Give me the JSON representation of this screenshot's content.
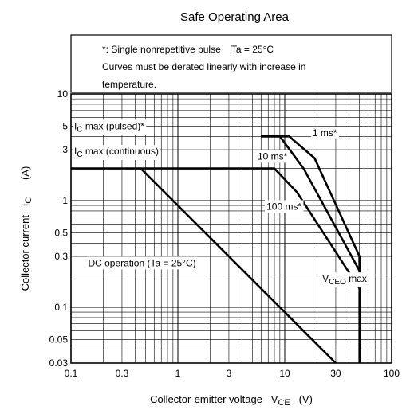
{
  "chart_data": {
    "type": "line",
    "title": "Safe Operating Area",
    "xlabel": {
      "main": "Collector-emitter voltage",
      "symbol": "V",
      "subscript": "CE",
      "unit": "(V)"
    },
    "ylabel": {
      "main": "Collector current",
      "symbol": "I",
      "subscript": "C",
      "unit": "(A)"
    },
    "x_scale": "log",
    "y_scale": "log",
    "xlim": [
      0.1,
      100
    ],
    "ylim": [
      0.03,
      10
    ],
    "grid": true,
    "x_ticks": [
      {
        "value": 0.1,
        "label": "0.1"
      },
      {
        "value": 0.3,
        "label": "0.3"
      },
      {
        "value": 1,
        "label": "1"
      },
      {
        "value": 3,
        "label": "3"
      },
      {
        "value": 10,
        "label": "10"
      },
      {
        "value": 30,
        "label": "30"
      },
      {
        "value": 100,
        "label": "100"
      }
    ],
    "y_ticks": [
      {
        "value": 0.03,
        "label": "0.03"
      },
      {
        "value": 0.05,
        "label": "0.05"
      },
      {
        "value": 0.1,
        "label": "0.1"
      },
      {
        "value": 0.3,
        "label": "0.3"
      },
      {
        "value": 0.5,
        "label": "0.5"
      },
      {
        "value": 1,
        "label": "1"
      },
      {
        "value": 3,
        "label": "3"
      },
      {
        "value": 5,
        "label": "5"
      },
      {
        "value": 10,
        "label": "10"
      }
    ],
    "notes": [
      "*: Single nonrepetitive pulse    Ta = 25°C",
      "Curves must be derated linearly with increase in",
      "temperature."
    ],
    "series": [
      {
        "key": "pulse_1ms",
        "points": [
          [
            6,
            4
          ],
          [
            11,
            4
          ],
          [
            19,
            2.5
          ],
          [
            50,
            0.3
          ],
          [
            50,
            0.15
          ]
        ]
      },
      {
        "key": "pulse_10ms",
        "points": [
          [
            6,
            4
          ],
          [
            9,
            4
          ],
          [
            15,
            2
          ],
          [
            50,
            0.22
          ],
          [
            50,
            0.15
          ]
        ]
      },
      {
        "key": "pulse_100ms",
        "points": [
          [
            0.1,
            2
          ],
          [
            8,
            2
          ],
          [
            13,
            1.2
          ],
          [
            50,
            0.15
          ]
        ]
      },
      {
        "key": "dc",
        "points": [
          [
            0.45,
            2
          ],
          [
            30,
            0.03
          ]
        ]
      },
      {
        "key": "vceo",
        "points": [
          [
            50,
            0.3
          ],
          [
            50,
            0.03
          ]
        ]
      }
    ],
    "annotations": [
      {
        "key": "ic_pulsed",
        "text": "I",
        "sub": "C",
        "rest": " max (pulsed)*",
        "x": 0.1,
        "y": 5
      },
      {
        "key": "ic_cont",
        "text": "I",
        "sub": "C",
        "rest": " max (continuous)",
        "x": 0.1,
        "y": 2.9
      },
      {
        "key": "lbl_1ms",
        "text": "1 ms*",
        "sub": "",
        "rest": "",
        "x": 17,
        "y": 4.3
      },
      {
        "key": "lbl_10ms",
        "text": "10 ms*",
        "sub": "",
        "rest": "",
        "x": 5.2,
        "y": 2.6
      },
      {
        "key": "lbl_100ms",
        "text": "100 ms*",
        "sub": "",
        "rest": "",
        "x": 6.3,
        "y": 0.88
      },
      {
        "key": "lbl_dc",
        "text": "DC operation (Ta = 25°C)",
        "sub": "",
        "rest": "",
        "x": 0.135,
        "y": 0.26
      },
      {
        "key": "lbl_vceo",
        "text": "V",
        "sub": "CEO",
        "rest": " max",
        "x": 21,
        "y": 0.185
      }
    ]
  }
}
